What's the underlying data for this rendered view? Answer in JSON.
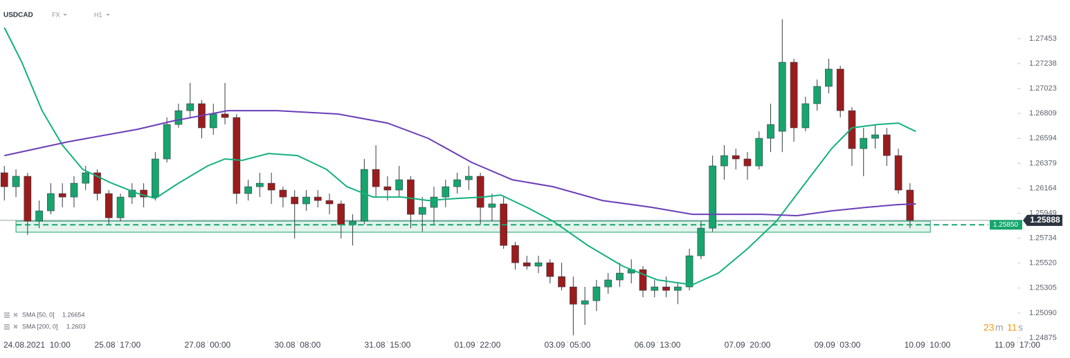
{
  "header": {
    "symbol": "USDCAD",
    "market": "FX",
    "interval": "H1"
  },
  "countdown": {
    "minutes": 23,
    "minutes_unit": "m",
    "seconds": 11,
    "seconds_unit": "s"
  },
  "chart_data": {
    "type": "candlestick",
    "up_color": "#17a56d",
    "down_color": "#9b1c1c",
    "wick_color": "#333a44",
    "xlim": [
      -9.5,
      341
    ],
    "ylim": [
      1.2478,
      1.27786
    ],
    "xticks": [
      {
        "value": 0,
        "label": "24.08.2021  10:00"
      },
      {
        "value": 31,
        "label": "25.08  17:00"
      },
      {
        "value": 62,
        "label": "27.08  00:00"
      },
      {
        "value": 93,
        "label": "30.08  08:00"
      },
      {
        "value": 124,
        "label": "31.08  15:00"
      },
      {
        "value": 155,
        "label": "01.09  22:00"
      },
      {
        "value": 186,
        "label": "03.09  05:00"
      },
      {
        "value": 217,
        "label": "06.09  13:00"
      },
      {
        "value": 248,
        "label": "07.09  20:00"
      },
      {
        "value": 279,
        "label": "09.09  03:00"
      },
      {
        "value": 310,
        "label": "10.09  10:00"
      },
      {
        "value": 341,
        "label": "11.09  17:00"
      }
    ],
    "yticks": [
      1.27453,
      1.27238,
      1.27023,
      1.26809,
      1.26594,
      1.26379,
      1.26164,
      1.25949,
      1.25734,
      {
        "value": 1.2552,
        "label": "1.25520"
      },
      1.25305,
      {
        "value": 1.2509,
        "label": "1.25090"
      },
      1.24875
    ],
    "x": [
      -8,
      -4,
      0,
      4,
      8,
      12,
      16,
      20,
      24,
      28,
      32,
      36,
      40,
      44,
      48,
      52,
      56,
      60,
      64,
      68,
      72,
      76,
      80,
      84,
      88,
      92,
      96,
      100,
      104,
      108,
      112,
      116,
      120,
      124,
      128,
      132,
      136,
      140,
      144,
      148,
      152,
      156,
      160,
      164,
      168,
      172,
      176,
      180,
      184,
      188,
      192,
      196,
      200,
      204,
      208,
      212,
      216,
      220,
      224,
      228,
      232,
      236,
      240,
      244,
      248,
      252,
      256,
      260,
      264,
      268,
      272,
      276,
      280,
      284,
      288,
      292,
      296,
      300,
      304
    ],
    "open": [
      1.26298,
      1.26178,
      1.26268,
      1.25881,
      1.2597,
      1.26119,
      1.26089,
      1.26208,
      1.26298,
      1.26119,
      1.2591,
      1.26089,
      1.26149,
      1.26089,
      1.26417,
      1.26714,
      1.26833,
      1.26893,
      1.26685,
      1.26804,
      1.26774,
      1.26119,
      1.26178,
      1.26208,
      1.26149,
      1.26089,
      1.2603,
      1.26089,
      1.26059,
      1.2603,
      1.25851,
      1.25881,
      1.26327,
      1.26178,
      1.26149,
      1.26238,
      1.2594,
      1.26,
      1.26089,
      1.26178,
      1.26238,
      1.26268,
      1.26,
      1.2603,
      1.25672,
      1.25523,
      1.25494,
      1.25523,
      1.25404,
      1.25315,
      1.25166,
      1.25196,
      1.25315,
      1.25375,
      1.25434,
      1.25464,
      1.25285,
      1.25315,
      1.25285,
      1.25315,
      1.25583,
      1.25821,
      1.26357,
      1.26446,
      1.26417,
      1.26357,
      1.26595,
      1.26655,
      1.2725,
      1.26685,
      1.26893,
      1.27042,
      1.27191,
      1.26833,
      1.26506,
      1.26595,
      1.26625,
      1.26446,
      1.26149
    ],
    "high": [
      1.26357,
      1.26327,
      1.26298,
      1.26059,
      1.26208,
      1.26208,
      1.26268,
      1.26357,
      1.26327,
      1.26149,
      1.26119,
      1.26208,
      1.26208,
      1.26476,
      1.26774,
      1.26893,
      1.27072,
      1.26923,
      1.26893,
      1.27072,
      1.26804,
      1.26238,
      1.26298,
      1.26298,
      1.26178,
      1.26149,
      1.26149,
      1.26149,
      1.26119,
      1.26059,
      1.2594,
      1.26417,
      1.26536,
      1.26268,
      1.26357,
      1.26268,
      1.26089,
      1.26178,
      1.26238,
      1.26298,
      1.26357,
      1.26298,
      1.26119,
      1.26089,
      1.25702,
      1.25583,
      1.25583,
      1.25553,
      1.25523,
      1.25404,
      1.25315,
      1.25375,
      1.25434,
      1.25523,
      1.25553,
      1.25494,
      1.25375,
      1.25404,
      1.25345,
      1.25643,
      1.25881,
      1.26446,
      1.26536,
      1.26506,
      1.26476,
      1.26655,
      1.26893,
      1.27619,
      1.2728,
      1.26953,
      1.27101,
      1.2728,
      1.2722,
      1.26863,
      1.26685,
      1.26714,
      1.26685,
      1.26506,
      1.26208
    ],
    "low": [
      1.26059,
      1.26089,
      1.25762,
      1.25821,
      1.2594,
      1.26,
      1.26,
      1.26149,
      1.26059,
      1.25851,
      1.25881,
      1.2603,
      1.26,
      1.26059,
      1.26387,
      1.26685,
      1.26774,
      1.26595,
      1.26625,
      1.26714,
      1.2603,
      1.26059,
      1.26089,
      1.2603,
      1.26,
      1.25732,
      1.2597,
      1.26,
      1.2594,
      1.25732,
      1.25672,
      1.25851,
      1.26089,
      1.26059,
      1.26089,
      1.25821,
      1.25791,
      1.25851,
      1.26,
      1.26119,
      1.26149,
      1.25851,
      1.25881,
      1.25643,
      1.25464,
      1.25464,
      1.25434,
      1.25345,
      1.25285,
      1.24898,
      1.24988,
      1.25107,
      1.25256,
      1.25315,
      1.25345,
      1.25226,
      1.25226,
      1.25226,
      1.25166,
      1.25285,
      1.25553,
      1.25791,
      1.26238,
      1.26327,
      1.26238,
      1.26327,
      1.26476,
      1.26476,
      1.26565,
      1.26655,
      1.26833,
      1.26982,
      1.26774,
      1.26357,
      1.26268,
      1.26506,
      1.26357,
      1.26119,
      1.25821
    ],
    "close": [
      1.26178,
      1.26268,
      1.25881,
      1.2597,
      1.26119,
      1.26089,
      1.26208,
      1.26298,
      1.26119,
      1.2591,
      1.26089,
      1.26149,
      1.26089,
      1.26417,
      1.26714,
      1.26833,
      1.26893,
      1.26685,
      1.26804,
      1.26774,
      1.26119,
      1.26178,
      1.26208,
      1.26149,
      1.26089,
      1.2603,
      1.26089,
      1.26059,
      1.2603,
      1.25851,
      1.25881,
      1.26327,
      1.26178,
      1.26149,
      1.26238,
      1.2594,
      1.26,
      1.26089,
      1.26178,
      1.26238,
      1.26268,
      1.26,
      1.2603,
      1.25672,
      1.25523,
      1.25494,
      1.25523,
      1.25404,
      1.25315,
      1.25166,
      1.25196,
      1.25315,
      1.25375,
      1.25434,
      1.25464,
      1.25285,
      1.25315,
      1.25285,
      1.25315,
      1.25583,
      1.25821,
      1.26357,
      1.26446,
      1.26417,
      1.26357,
      1.26595,
      1.26714,
      1.2725,
      1.26685,
      1.26893,
      1.27042,
      1.27191,
      1.26833,
      1.26506,
      1.26595,
      1.26625,
      1.26446,
      1.26149,
      1.25888
    ],
    "indicators": [
      {
        "name": "SMA [50, 0]",
        "last": 1.26654,
        "color": "#12b07e",
        "x": [
          -8,
          -2,
          5,
          12,
          19,
          29,
          38,
          44,
          52,
          62,
          68,
          74,
          83,
          93,
          103,
          110,
          119,
          129,
          138,
          148,
          157,
          163,
          172,
          181,
          193,
          205,
          217,
          229,
          238,
          248,
          258,
          267,
          277,
          284,
          293,
          300,
          306
        ],
        "values": [
          1.27548,
          1.2725,
          1.26833,
          1.26536,
          1.26327,
          1.26208,
          1.26119,
          1.26077,
          1.26208,
          1.26357,
          1.26417,
          1.26405,
          1.26464,
          1.26446,
          1.26327,
          1.26178,
          1.26089,
          1.26089,
          1.26059,
          1.26077,
          1.26089,
          1.26107,
          1.26,
          1.25881,
          1.25672,
          1.25494,
          1.25375,
          1.25333,
          1.25434,
          1.25643,
          1.25881,
          1.26178,
          1.26506,
          1.26685,
          1.26714,
          1.26726,
          1.26654
        ]
      },
      {
        "name": "SMA [200, 0]",
        "last": 1.2603,
        "color": "#6a3db8",
        "x": [
          -8,
          14,
          38,
          50,
          69,
          86,
          107,
          124,
          138,
          153,
          167,
          181,
          198,
          215,
          229,
          241,
          253,
          265,
          277,
          289,
          300,
          306
        ],
        "values": [
          1.26446,
          1.26565,
          1.26673,
          1.26744,
          1.26833,
          1.26833,
          1.26804,
          1.26726,
          1.26595,
          1.26387,
          1.26238,
          1.26178,
          1.26059,
          1.26,
          1.2594,
          1.2594,
          1.2594,
          1.25928,
          1.2597,
          1.26,
          1.26024,
          1.2603
        ]
      }
    ],
    "zone": {
      "x": [
        -4,
        311
      ],
      "y": [
        1.25786,
        1.25881
      ],
      "color": "#17a56d"
    },
    "level": {
      "value": 1.2585,
      "label": "1.25850",
      "x": [
        -4,
        331
      ],
      "color": "#17a56d"
    },
    "price": {
      "value": 1.25888,
      "color": "#2b3340"
    }
  }
}
